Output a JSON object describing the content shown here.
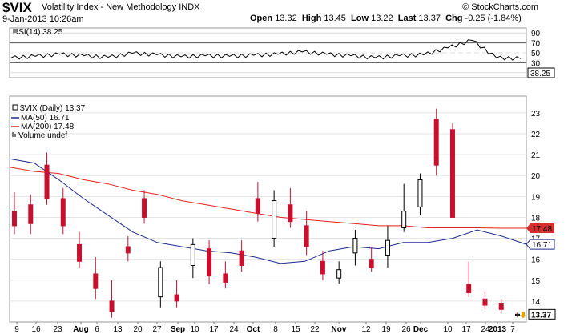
{
  "header": {
    "symbol": "$VIX",
    "name": "Volatility Index - New Methodology",
    "exchange": "INDX",
    "date": "9-Jan-2013 10:26am",
    "open_label": "Open",
    "open": "13.32",
    "high_label": "High",
    "high": "13.45",
    "low_label": "Low",
    "low": "13.22",
    "last_label": "Last",
    "last": "13.37",
    "chg_label": "Chg",
    "chg": "-0.25 (-1.84%)",
    "copyright": "© StockCharts.com"
  },
  "rsi_panel": {
    "legend": "RSI(14) 38.25",
    "current_value_label": "38.25",
    "ticks": [
      "90",
      "70",
      "50",
      "30",
      "10"
    ]
  },
  "price_panel": {
    "legend_main": "$VIX (Daily) 13.37",
    "legend_ma50": "MA(50) 16.71",
    "legend_ma200": "MA(200) 17.48",
    "legend_volume": "Volume undef",
    "tag_ma200": "17.48",
    "tag_ma50": "16.71",
    "tag_last": "13.37",
    "y_ticks": [
      "23",
      "22",
      "21",
      "20",
      "19",
      "18",
      "17",
      "16",
      "15",
      "14"
    ]
  },
  "x_axis": {
    "labels": [
      "9",
      "16",
      "23",
      "Aug",
      "6",
      "13",
      "20",
      "27",
      "Sep",
      "10",
      "17",
      "24",
      "Oct",
      "8",
      "15",
      "22",
      "Nov",
      "12",
      "19",
      "26",
      "Dec",
      "10",
      "17",
      "24",
      "2013",
      "7"
    ]
  },
  "colors": {
    "ma50": "#1e2a8c",
    "ma200": "#e2231a",
    "down_candle": "#c8102e",
    "up_candle": "#000000",
    "tag_ma200": "#d32f2f",
    "tag_ma50": "#1e2a8c",
    "last_arrow": "#e6a100"
  },
  "chart_data": [
    {
      "type": "line",
      "title": "RSI(14) 38.25",
      "ylim": [
        0,
        100
      ],
      "y_ticks": [
        90,
        70,
        50,
        30,
        10
      ],
      "x": [
        "Jul 9",
        "Jul 16",
        "Jul 23",
        "Aug 6",
        "Aug 13",
        "Aug 20",
        "Aug 27",
        "Sep 10",
        "Sep 17",
        "Sep 24",
        "Oct 8",
        "Oct 15",
        "Oct 22",
        "Nov 12",
        "Nov 19",
        "Nov 26",
        "Dec 10",
        "Dec 17",
        "Dec 24",
        "Dec 28",
        "Jan 7",
        "Jan 9"
      ],
      "series": [
        {
          "values": [
            40,
            43,
            47,
            44,
            41,
            49,
            46,
            42,
            44,
            43,
            45,
            47,
            52,
            47,
            44,
            40,
            44,
            46,
            60,
            75,
            40,
            38.25
          ]
        }
      ]
    },
    {
      "type": "candlestick",
      "title": "$VIX (Daily) 13.37",
      "ylim": [
        13.0,
        23.8
      ],
      "y_ticks": [
        23,
        22,
        21,
        20,
        19,
        18,
        17,
        16,
        15,
        14
      ],
      "x": [
        "Jul 9",
        "Jul 16",
        "Jul 23",
        "Aug 6",
        "Aug 13",
        "Aug 20",
        "Aug 27",
        "Sep 10",
        "Sep 17",
        "Sep 24",
        "Oct 8",
        "Oct 15",
        "Oct 22",
        "Nov 12",
        "Nov 19",
        "Nov 26",
        "Dec 10",
        "Dec 17",
        "Dec 24",
        "Dec 28",
        "Jan 7",
        "Jan 9"
      ],
      "candles": [
        {
          "d": "Jul 9",
          "o": 18.3,
          "h": 19.2,
          "l": 17.2,
          "c": 17.6
        },
        {
          "d": "Jul 16",
          "o": 18.6,
          "h": 19.1,
          "l": 17.2,
          "c": 17.7
        },
        {
          "d": "Jul 23",
          "o": 20.5,
          "h": 21.1,
          "l": 18.6,
          "c": 18.9
        },
        {
          "d": "Jul 31",
          "o": 18.9,
          "h": 19.4,
          "l": 17.2,
          "c": 17.6
        },
        {
          "d": "Aug 6",
          "o": 16.7,
          "h": 17.3,
          "l": 15.6,
          "c": 15.9
        },
        {
          "d": "Aug 13",
          "o": 15.3,
          "h": 16.1,
          "l": 14.1,
          "c": 14.6
        },
        {
          "d": "Aug 20",
          "o": 14.0,
          "h": 15.0,
          "l": 13.2,
          "c": 13.5
        },
        {
          "d": "Aug 27",
          "o": 16.6,
          "h": 17.1,
          "l": 15.9,
          "c": 16.3
        },
        {
          "d": "Sep 3",
          "o": 18.9,
          "h": 19.3,
          "l": 17.7,
          "c": 18.0
        },
        {
          "d": "Sep 10",
          "o": 14.2,
          "h": 15.9,
          "l": 13.7,
          "c": 15.6
        },
        {
          "d": "Sep 17",
          "o": 14.3,
          "h": 15.0,
          "l": 13.7,
          "c": 14.0
        },
        {
          "d": "Sep 24",
          "o": 15.7,
          "h": 17.0,
          "l": 15.1,
          "c": 16.7
        },
        {
          "d": "Oct 1",
          "o": 16.5,
          "h": 16.9,
          "l": 14.8,
          "c": 15.2
        },
        {
          "d": "Oct 8",
          "o": 15.3,
          "h": 15.9,
          "l": 14.6,
          "c": 14.9
        },
        {
          "d": "Oct 15",
          "o": 16.4,
          "h": 16.9,
          "l": 15.4,
          "c": 15.7
        },
        {
          "d": "Oct 22",
          "o": 18.9,
          "h": 19.7,
          "l": 17.8,
          "c": 18.2
        },
        {
          "d": "Oct 29",
          "o": 17.0,
          "h": 19.3,
          "l": 16.6,
          "c": 18.8
        },
        {
          "d": "Nov 5",
          "o": 18.6,
          "h": 19.4,
          "l": 17.5,
          "c": 17.8
        },
        {
          "d": "Nov 12",
          "o": 17.6,
          "h": 18.3,
          "l": 16.2,
          "c": 16.6
        },
        {
          "d": "Nov 19",
          "o": 15.9,
          "h": 16.4,
          "l": 15.0,
          "c": 15.3
        },
        {
          "d": "Nov 26",
          "o": 15.1,
          "h": 15.9,
          "l": 14.8,
          "c": 15.5
        },
        {
          "d": "Dec 3",
          "o": 16.3,
          "h": 17.4,
          "l": 15.7,
          "c": 17.0
        },
        {
          "d": "Dec 10",
          "o": 16.0,
          "h": 16.6,
          "l": 15.4,
          "c": 15.6
        },
        {
          "d": "Dec 17",
          "o": 16.2,
          "h": 17.6,
          "l": 15.6,
          "c": 16.9
        },
        {
          "d": "Dec 20",
          "o": 17.5,
          "h": 19.6,
          "l": 17.3,
          "c": 18.3
        },
        {
          "d": "Dec 24",
          "o": 18.5,
          "h": 20.1,
          "l": 18.1,
          "c": 19.8
        },
        {
          "d": "Dec 27",
          "o": 22.7,
          "h": 23.2,
          "l": 20.0,
          "c": 20.5
        },
        {
          "d": "Dec 28",
          "o": 22.2,
          "h": 22.5,
          "l": 18.1,
          "c": 18.0
        },
        {
          "d": "Jan 2",
          "o": 14.8,
          "h": 15.9,
          "l": 14.2,
          "c": 14.4
        },
        {
          "d": "Jan 4",
          "o": 14.1,
          "h": 14.5,
          "l": 13.6,
          "c": 13.8
        },
        {
          "d": "Jan 7",
          "o": 13.9,
          "h": 14.1,
          "l": 13.4,
          "c": 13.6
        },
        {
          "d": "Jan 9",
          "o": 13.32,
          "h": 13.45,
          "l": 13.22,
          "c": 13.37
        }
      ],
      "series": [
        {
          "name": "MA(50) 16.71",
          "values": [
            20.8,
            20.6,
            19.8,
            18.9,
            18.1,
            17.3,
            16.8,
            16.6,
            16.4,
            16.3,
            16.1,
            15.8,
            15.9,
            16.4,
            16.6,
            16.5,
            16.8,
            16.8,
            17.0,
            17.4,
            17.1,
            16.71
          ]
        },
        {
          "name": "MA(200) 17.48",
          "values": [
            20.4,
            20.2,
            20.1,
            19.8,
            19.6,
            19.3,
            19.1,
            18.8,
            18.6,
            18.4,
            18.2,
            18.0,
            17.9,
            17.8,
            17.7,
            17.6,
            17.6,
            17.5,
            17.5,
            17.5,
            17.48,
            17.48
          ]
        }
      ]
    }
  ]
}
